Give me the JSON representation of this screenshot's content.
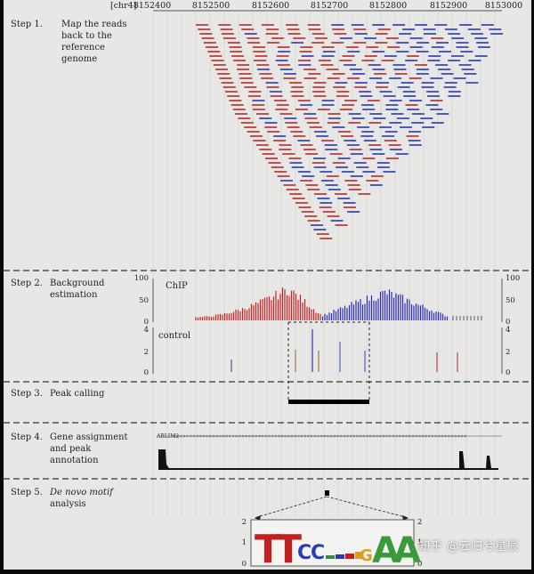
{
  "axis": {
    "chromosome": "[chr4]",
    "coordinates": [
      "8152400",
      "8152500",
      "8152600",
      "8152700",
      "8152800",
      "8152900",
      "8153000"
    ]
  },
  "steps": [
    {
      "number": "Step 1.",
      "lines": [
        "Map the reads",
        "back to the",
        "reference",
        "genome"
      ]
    },
    {
      "number": "Step 2.",
      "lines": [
        "Background",
        "estimation"
      ]
    },
    {
      "number": "Step 3.",
      "lines": [
        "Peak calling"
      ]
    },
    {
      "number": "Step 4.",
      "lines": [
        "Gene assignment",
        "and peak",
        "annotation"
      ]
    },
    {
      "number": "Step 5.",
      "lines": [
        "De novo motif",
        "analysis"
      ]
    }
  ],
  "tracks": {
    "chip_label": "ChIP",
    "control_label": "control",
    "chip_ticks": [
      "100",
      "50",
      "0"
    ],
    "control_ticks": [
      "4",
      "2",
      "0"
    ],
    "gene_name": "ABLIM2",
    "motif_ticks": [
      "2",
      "1",
      "0"
    ],
    "motif_letters": [
      "T",
      "T",
      "C",
      "C",
      "G",
      "A",
      "A"
    ]
  },
  "colors": {
    "forward_reads": "#c0504d",
    "reverse_reads": "#4f5bb8",
    "chip_forward": "#cc2020",
    "chip_reverse": "#2a2ac0",
    "peak": "#000000"
  },
  "watermark": "知乎 @云归兮星辰"
}
